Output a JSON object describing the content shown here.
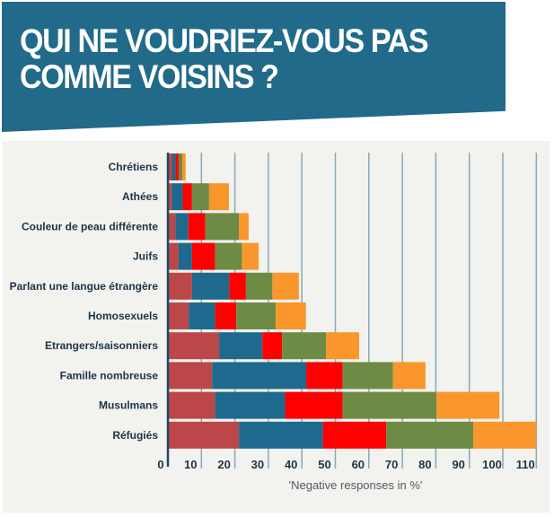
{
  "title": "QUI NE VOUDRIEZ-VOUS PAS\nCOMME VOISINS ?",
  "chart_data": {
    "type": "bar",
    "orientation": "horizontal",
    "stacked": true,
    "title": "QUI NE VOUDRIEZ-VOUS PAS COMME VOISINS ?",
    "xlabel": "'Negative responses in %'",
    "ylabel": "",
    "xlim": [
      0,
      112
    ],
    "xticks": [
      0,
      10,
      20,
      30,
      40,
      50,
      60,
      70,
      80,
      90,
      100,
      110
    ],
    "grid": "vertical",
    "legend": "none",
    "categories": [
      "Chrétiens",
      "Athées",
      "Couleur de peau différente",
      "Juifs",
      "Parlant une langue étrangère",
      "Homosexuels",
      "Etrangers/saisonniers",
      "Famille nombreuse",
      "Musulmans",
      "Réfugiés"
    ],
    "series_colors": [
      "#bc4749",
      "#1d6a8e",
      "#ff0000",
      "#6e8b45",
      "#f9972c"
    ],
    "series": [
      {
        "values": [
          1.2,
          1.2,
          2.3,
          3.2,
          7.2,
          6.2,
          15.3,
          13.2,
          14.1,
          21.2
        ]
      },
      {
        "values": [
          1.1,
          3.2,
          3.8,
          4.0,
          11.1,
          7.9,
          12.9,
          28.1,
          20.9,
          25.1
        ]
      },
      {
        "values": [
          0.9,
          2.8,
          5.1,
          6.9,
          5.0,
          6.3,
          5.9,
          10.9,
          17.2,
          18.9
        ]
      },
      {
        "values": [
          1.1,
          5.1,
          10.0,
          8.0,
          7.9,
          11.8,
          13.1,
          15.0,
          28.0,
          26.0
        ]
      },
      {
        "values": [
          1.0,
          5.9,
          2.9,
          5.0,
          7.9,
          9.0,
          9.9,
          9.7,
          18.8,
          18.8
        ]
      }
    ]
  }
}
